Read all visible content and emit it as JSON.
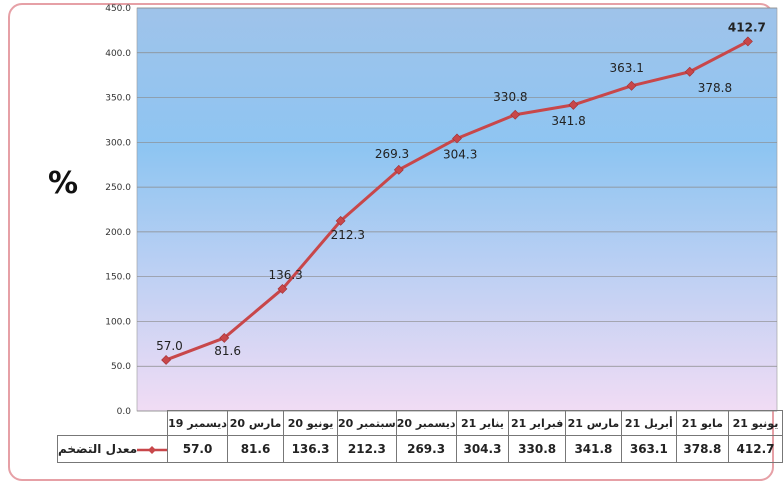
{
  "chart_data": {
    "type": "line",
    "ylabel": "%",
    "ylim": [
      0,
      450
    ],
    "yticks": [
      "0.0",
      "50.0",
      "100.0",
      "150.0",
      "200.0",
      "250.0",
      "300.0",
      "350.0",
      "400.0",
      "450.0"
    ],
    "categories": [
      "ديسمبر 19",
      "مارس 20",
      "يونيو 20",
      "سبتمبر 20",
      "ديسمبر 20",
      "يناير 21",
      "فبراير 21",
      "مارس 21",
      "أبريل 21",
      "مايو 21",
      "يونيو 21"
    ],
    "series": [
      {
        "name": "معدل التضخم",
        "color": "#c8474a",
        "values": [
          57.0,
          81.6,
          136.3,
          212.3,
          269.3,
          304.3,
          330.8,
          341.8,
          363.1,
          378.8,
          412.7
        ],
        "labels": [
          "57.0",
          "81.6",
          "136.3",
          "212.3",
          "269.3",
          "304.3",
          "330.8",
          "341.8",
          "363.1",
          "378.8",
          "412.7"
        ]
      }
    ],
    "grid": true,
    "background": [
      "#a7c8ec",
      "#e9d6f0"
    ]
  }
}
